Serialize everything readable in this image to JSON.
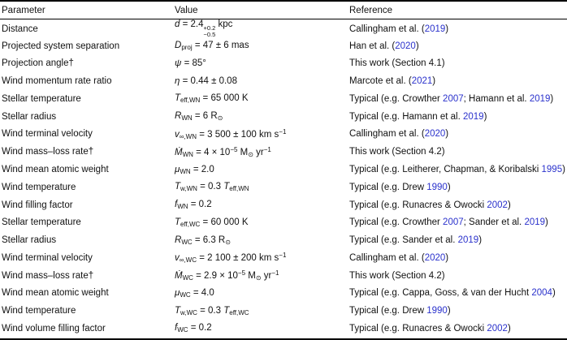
{
  "meta": {
    "link_color": "#2b32cc",
    "text_color": "#111111"
  },
  "table": {
    "headers": [
      "Parameter",
      "Value",
      "Reference"
    ],
    "rows": [
      {
        "parameter": "Distance",
        "value": [
          {
            "i": "d"
          },
          {
            "t": " = 2.4"
          },
          {
            "ss": [
              "+0.2",
              "−0.5"
            ]
          },
          {
            "t": " kpc"
          }
        ],
        "reference": [
          {
            "t": "Callingham et al. ("
          },
          {
            "l": "2019"
          },
          {
            "t": ")"
          }
        ]
      },
      {
        "parameter": "Projected system separation",
        "value": [
          {
            "i": "D"
          },
          {
            "sub": "proj"
          },
          {
            "t": " = 47 ± 6 mas"
          }
        ],
        "reference": [
          {
            "t": "Han et al. ("
          },
          {
            "l": "2020"
          },
          {
            "t": ")"
          }
        ]
      },
      {
        "parameter": "Projection angle†",
        "value": [
          {
            "i": "ψ"
          },
          {
            "t": " = 85°"
          }
        ],
        "reference": [
          {
            "t": "This work (Section 4.1)"
          }
        ]
      },
      {
        "parameter": "Wind momentum rate ratio",
        "value": [
          {
            "i": "η"
          },
          {
            "t": " = 0.44 ± 0.08"
          }
        ],
        "reference": [
          {
            "t": "Marcote et al. ("
          },
          {
            "l": "2021"
          },
          {
            "t": ")"
          }
        ]
      },
      {
        "parameter": "Stellar temperature",
        "value": [
          {
            "i": "T"
          },
          {
            "sub": "eff,WN"
          },
          {
            "t": " = 65 000 K"
          }
        ],
        "reference": [
          {
            "t": "Typical (e.g. Crowther "
          },
          {
            "l": "2007"
          },
          {
            "t": "; Hamann et al. "
          },
          {
            "l": "2019"
          },
          {
            "t": ")"
          }
        ]
      },
      {
        "parameter": "Stellar radius",
        "value": [
          {
            "i": "R"
          },
          {
            "sub": "WN"
          },
          {
            "t": " = 6 R"
          },
          {
            "sub": "⊙"
          }
        ],
        "reference": [
          {
            "t": "Typical (e.g. Hamann et al. "
          },
          {
            "l": "2019"
          },
          {
            "t": ")"
          }
        ]
      },
      {
        "parameter": "Wind terminal velocity",
        "value": [
          {
            "i": "v"
          },
          {
            "sub": "∞,WN"
          },
          {
            "t": " = 3 500 ± 100 km s"
          },
          {
            "sup": "−1"
          }
        ],
        "reference": [
          {
            "t": "Callingham et al. ("
          },
          {
            "l": "2020"
          },
          {
            "t": ")"
          }
        ]
      },
      {
        "parameter": "Wind mass–loss rate†",
        "value": [
          {
            "i": "Ṁ"
          },
          {
            "sub": "WN"
          },
          {
            "t": " = 4 × 10"
          },
          {
            "sup": "−5"
          },
          {
            "t": " M"
          },
          {
            "sub": "⊙"
          },
          {
            "t": " yr"
          },
          {
            "sup": "−1"
          }
        ],
        "reference": [
          {
            "t": "This work (Section 4.2)"
          }
        ]
      },
      {
        "parameter": "Wind mean atomic weight",
        "value": [
          {
            "i": "μ"
          },
          {
            "sub": "WN"
          },
          {
            "t": " = 2.0"
          }
        ],
        "reference": [
          {
            "t": "Typical (e.g. Leitherer, Chapman, & Koribalski "
          },
          {
            "l": "1995"
          },
          {
            "t": ")"
          }
        ]
      },
      {
        "parameter": "Wind temperature",
        "value": [
          {
            "i": "T"
          },
          {
            "sub": "w,WN"
          },
          {
            "t": " = 0.3 "
          },
          {
            "i": "T"
          },
          {
            "sub": "eff,WN"
          }
        ],
        "reference": [
          {
            "t": "Typical (e.g. Drew "
          },
          {
            "l": "1990"
          },
          {
            "t": ")"
          }
        ]
      },
      {
        "parameter": "Wind filling factor",
        "value": [
          {
            "i": "f"
          },
          {
            "sub": "WN"
          },
          {
            "t": " = 0.2"
          }
        ],
        "reference": [
          {
            "t": "Typical (e.g. Runacres & Owocki "
          },
          {
            "l": "2002"
          },
          {
            "t": ")"
          }
        ]
      },
      {
        "parameter": "Stellar temperature",
        "value": [
          {
            "i": "T"
          },
          {
            "sub": "eff,WC"
          },
          {
            "t": " = 60 000 K"
          }
        ],
        "reference": [
          {
            "t": "Typical (e.g. Crowther "
          },
          {
            "l": "2007"
          },
          {
            "t": "; Sander et al. "
          },
          {
            "l": "2019"
          },
          {
            "t": ")"
          }
        ]
      },
      {
        "parameter": "Stellar radius",
        "value": [
          {
            "i": "R"
          },
          {
            "sub": "WC"
          },
          {
            "t": " = 6.3 R"
          },
          {
            "sub": "⊙"
          }
        ],
        "reference": [
          {
            "t": "Typical (e.g. Sander et al. "
          },
          {
            "l": "2019"
          },
          {
            "t": ")"
          }
        ]
      },
      {
        "parameter": "Wind terminal velocity",
        "value": [
          {
            "i": "v"
          },
          {
            "sub": "∞,WC"
          },
          {
            "t": " = 2 100 ± 200 km s"
          },
          {
            "sup": "−1"
          }
        ],
        "reference": [
          {
            "t": "Callingham et al. ("
          },
          {
            "l": "2020"
          },
          {
            "t": ")"
          }
        ]
      },
      {
        "parameter": "Wind mass–loss rate†",
        "value": [
          {
            "i": "Ṁ"
          },
          {
            "sub": "WC"
          },
          {
            "t": " = 2.9 × 10"
          },
          {
            "sup": "−5"
          },
          {
            "t": " M"
          },
          {
            "sub": "⊙"
          },
          {
            "t": " yr"
          },
          {
            "sup": "−1"
          }
        ],
        "reference": [
          {
            "t": "This work (Section 4.2)"
          }
        ]
      },
      {
        "parameter": "Wind mean atomic weight",
        "value": [
          {
            "i": "μ"
          },
          {
            "sub": "WC"
          },
          {
            "t": " = 4.0"
          }
        ],
        "reference": [
          {
            "t": "Typical (e.g. Cappa, Goss, & van der Hucht "
          },
          {
            "l": "2004"
          },
          {
            "t": ")"
          }
        ]
      },
      {
        "parameter": "Wind temperature",
        "value": [
          {
            "i": "T"
          },
          {
            "sub": "w,WC"
          },
          {
            "t": " = 0.3 "
          },
          {
            "i": "T"
          },
          {
            "sub": "eff,WC"
          }
        ],
        "reference": [
          {
            "t": "Typical (e.g. Drew "
          },
          {
            "l": "1990"
          },
          {
            "t": ")"
          }
        ]
      },
      {
        "parameter": "Wind volume filling factor",
        "value": [
          {
            "i": "f"
          },
          {
            "sub": "WC"
          },
          {
            "t": " = 0.2"
          }
        ],
        "reference": [
          {
            "t": "Typical (e.g. Runacres & Owocki "
          },
          {
            "l": "2002"
          },
          {
            "t": ")"
          }
        ]
      }
    ]
  }
}
